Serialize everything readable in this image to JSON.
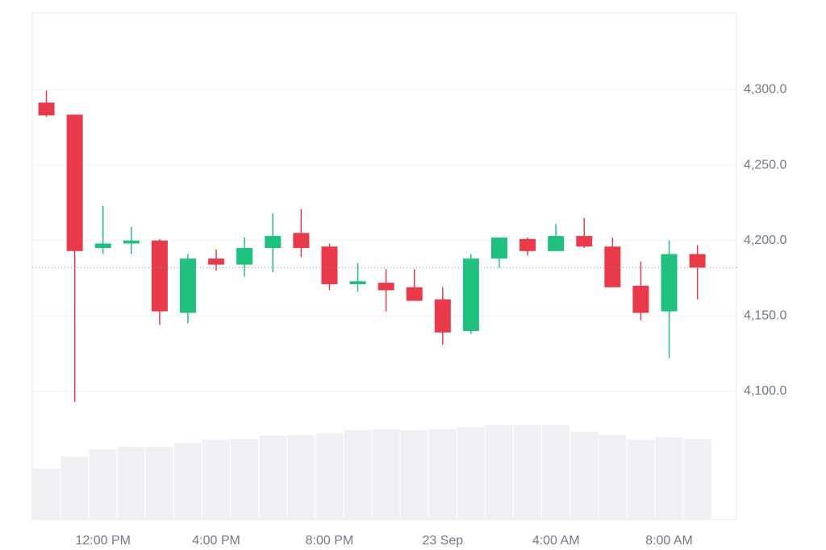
{
  "chart_data": {
    "type": "candlestick",
    "categories": [
      null,
      null,
      "12:00 PM",
      null,
      null,
      null,
      "4:00 PM",
      null,
      null,
      null,
      "8:00 PM",
      null,
      null,
      null,
      "23 Sep",
      null,
      null,
      null,
      "4:00 AM",
      null,
      null,
      null,
      "8:00 AM",
      null
    ],
    "open": [
      4291.5,
      4283.5,
      4195,
      4198,
      4200,
      4152,
      4188,
      4184,
      4195,
      4205,
      4196,
      4171,
      4172,
      4169,
      4161,
      4140,
      4188,
      4201,
      4193,
      4203,
      4196,
      4170,
      4153,
      4191
    ],
    "high": [
      4299.5,
      4283.5,
      4223,
      4209,
      4201,
      4191,
      4194,
      4202,
      4218,
      4221,
      4198,
      4185,
      4181,
      4181,
      4169,
      4191,
      4202,
      4202,
      4211,
      4215,
      4202,
      4186,
      4200,
      4197
    ],
    "low": [
      4282,
      4093,
      4191,
      4191,
      4144,
      4145,
      4180,
      4176,
      4179,
      4189,
      4167,
      4166,
      4153,
      4160,
      4131,
      4138,
      4182,
      4190,
      4193,
      4195,
      4169,
      4147,
      4122,
      4161
    ],
    "close": [
      4283,
      4193,
      4198,
      4200,
      4153,
      4188,
      4184,
      4195,
      4203,
      4195,
      4171,
      4173,
      4167,
      4160,
      4139,
      4188,
      4202,
      4193,
      4203,
      4196,
      4169,
      4152,
      4191,
      4182
    ],
    "volume": [
      63,
      78,
      87,
      90,
      90,
      95,
      99,
      100,
      104,
      105,
      107,
      111,
      112,
      111,
      112,
      115,
      117,
      117,
      117,
      109,
      105,
      99,
      102,
      100
    ],
    "volume_ylim": [
      0,
      140
    ],
    "ylim": [
      4015,
      4351
    ],
    "yticks": [
      {
        "value": 4100,
        "label": "4,100.0"
      },
      {
        "value": 4150,
        "label": "4,150.0"
      },
      {
        "value": 4200,
        "label": "4,200.0"
      },
      {
        "value": 4250,
        "label": "4,250.0"
      },
      {
        "value": 4300,
        "label": "4,300.0"
      }
    ],
    "up_color": "#20c17f",
    "down_color": "#e83a4a",
    "volume_color": "#eef0f3",
    "grid": true
  }
}
